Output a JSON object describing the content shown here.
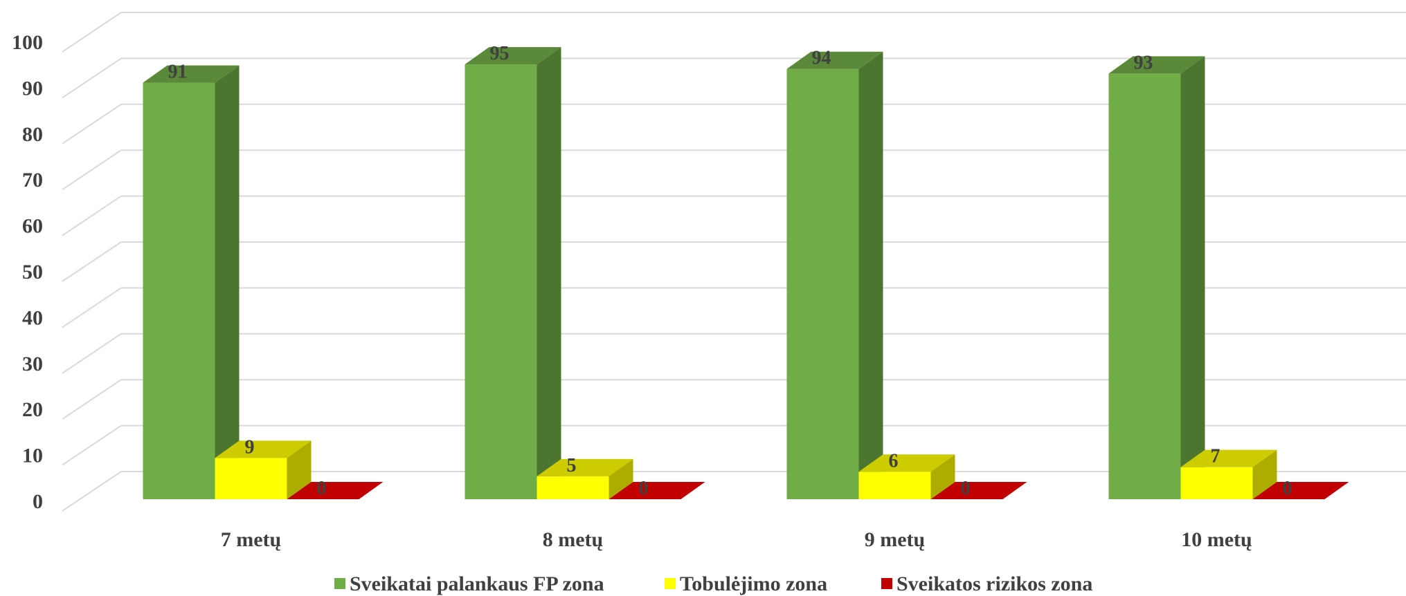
{
  "chart_data": {
    "type": "bar",
    "categories": [
      "7 metų",
      "8 metų",
      "9 metų",
      "10 metų"
    ],
    "series": [
      {
        "name": "Sveikatai palankaus FP zona",
        "values": [
          91,
          95,
          94,
          93
        ],
        "color": "#70AD47"
      },
      {
        "name": "Tobulėjimo zona",
        "values": [
          9,
          5,
          6,
          7
        ],
        "color": "#FFFF00"
      },
      {
        "name": "Sveikatos rizikos zona",
        "values": [
          0,
          0,
          0,
          0
        ],
        "color": "#C00000"
      }
    ],
    "ylim": [
      0,
      100
    ],
    "yticks": [
      "0",
      "10",
      "20",
      "30",
      "40",
      "50",
      "60",
      "70",
      "80",
      "90",
      "100"
    ],
    "grid": true,
    "legend_position": "bottom",
    "style": "3d-clustered-column",
    "data_labels": true
  }
}
